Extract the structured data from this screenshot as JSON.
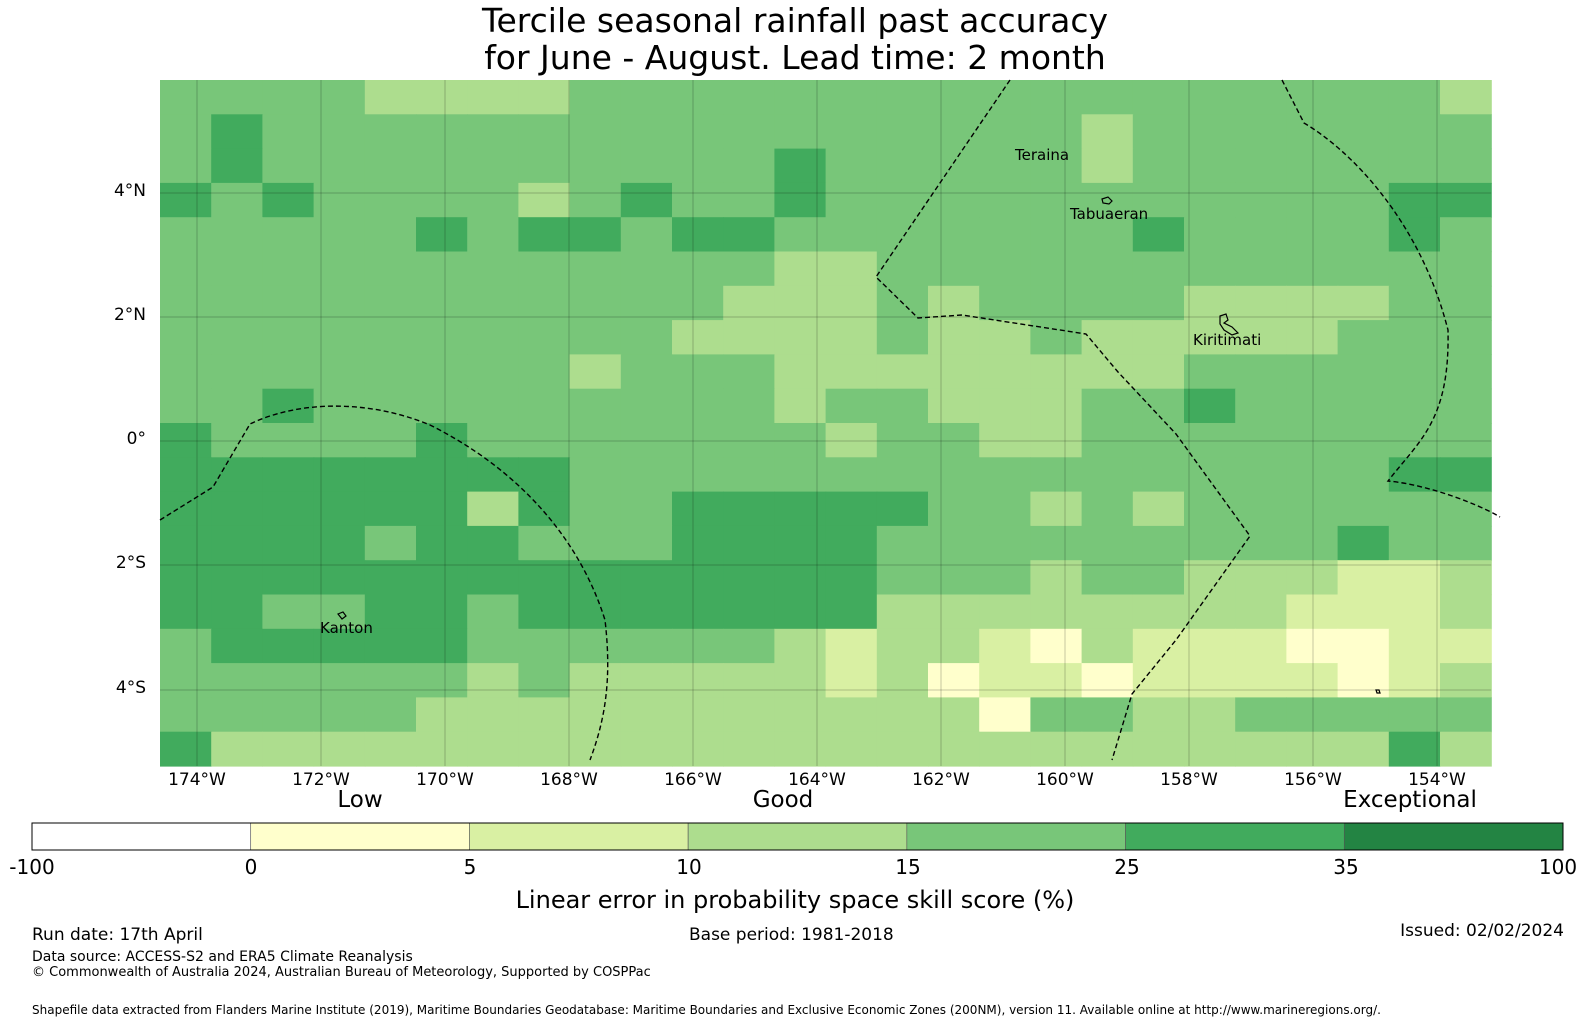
{
  "title_line1": "Tercile seasonal rainfall past accuracy",
  "title_line2": "for June - August. Lead time: 2 month",
  "lat_labels": [
    "4°N",
    "2°N",
    "0°",
    "2°S",
    "4°S"
  ],
  "lon_labels": [
    "174°W",
    "172°W",
    "170°W",
    "168°W",
    "166°W",
    "164°W",
    "162°W",
    "160°W",
    "158°W",
    "156°W",
    "154°W"
  ],
  "places": [
    "Teraina",
    "Tabuaeran",
    "Kiritimati",
    "Kanton"
  ],
  "categories": [
    "Low",
    "Good",
    "Exceptional"
  ],
  "colorbar": {
    "ticks": [
      "-100",
      "0",
      "5",
      "10",
      "15",
      "25",
      "35",
      "100"
    ],
    "colors": [
      "#ffffff",
      "#ffffcc",
      "#d9f0a3",
      "#addd8e",
      "#78c679",
      "#41ab5d",
      "#238443"
    ],
    "title": "Linear error in probability space skill score (%)"
  },
  "footer": {
    "run_date": "Run date: 17th April",
    "base_period": "Base period: 1981-2018",
    "issued": "Issued: 02/02/2024",
    "data_source": "Data source: ACCESS-S2 and ERA5 Climate Reanalysis",
    "copyright": "© Commonwealth of Australia 2024, Australian Bureau of Meteorology, Supported by COSPPac",
    "shapefile": "Shapefile data extracted from Flanders Marine Institute (2019), Maritime Boundaries Geodatabase: Maritime Boundaries and Exclusive Economic Zones (200NM), version 11. Available online at http://www.marineregions.org/."
  },
  "skill_grid": [
    "44444444444444444444444444",
    "44444444444444444444444444",
    "44444444444444444444444444",
    "44444444444444444444444444",
    "44444444444444444444444444",
    "44444444444444444444444444",
    "44444444444444444444444444",
    "44444444444444444444444444",
    "44444444444444444444444444",
    "44444444444444444444444444",
    "44444444444444444444444444",
    "44444444444444444444444444",
    "44444444444444444444444444",
    "44444444444444444444444444",
    "44444444444444444444444444",
    "44444444444444444444444444",
    "44444444444444444444444444",
    "44444444444444444444444444",
    "44444444444444444444444444",
    "44444444444444444444444444"
  ],
  "skill_cells": [
    [
      0,
      4,
      3
    ],
    [
      0,
      5,
      3
    ],
    [
      0,
      6,
      3
    ],
    [
      0,
      7,
      3
    ],
    [
      0,
      25,
      3
    ],
    [
      1,
      1,
      5
    ],
    [
      1,
      18,
      3
    ],
    [
      2,
      1,
      5
    ],
    [
      2,
      18,
      3
    ],
    [
      2,
      12,
      5
    ],
    [
      3,
      0,
      5
    ],
    [
      3,
      2,
      5
    ],
    [
      3,
      7,
      3
    ],
    [
      3,
      9,
      5
    ],
    [
      3,
      12,
      5
    ],
    [
      3,
      25,
      5
    ],
    [
      3,
      24,
      5
    ],
    [
      4,
      5,
      5
    ],
    [
      4,
      7,
      5
    ],
    [
      4,
      8,
      5
    ],
    [
      4,
      10,
      5
    ],
    [
      4,
      11,
      5
    ],
    [
      4,
      19,
      5
    ],
    [
      4,
      24,
      5
    ],
    [
      5,
      12,
      3
    ],
    [
      5,
      13,
      3
    ],
    [
      6,
      12,
      3
    ],
    [
      6,
      11,
      3
    ],
    [
      6,
      13,
      3
    ],
    [
      6,
      15,
      3
    ],
    [
      6,
      20,
      3
    ],
    [
      6,
      21,
      3
    ],
    [
      6,
      22,
      3
    ],
    [
      6,
      23,
      3
    ],
    [
      7,
      10,
      3
    ],
    [
      7,
      11,
      3
    ],
    [
      7,
      12,
      3
    ],
    [
      7,
      13,
      3
    ],
    [
      7,
      15,
      3
    ],
    [
      7,
      16,
      3
    ],
    [
      7,
      18,
      3
    ],
    [
      7,
      19,
      3
    ],
    [
      7,
      20,
      3
    ],
    [
      7,
      21,
      3
    ],
    [
      7,
      22,
      3
    ],
    [
      8,
      8,
      3
    ],
    [
      8,
      12,
      3
    ],
    [
      8,
      13,
      3
    ],
    [
      8,
      14,
      3
    ],
    [
      8,
      15,
      3
    ],
    [
      8,
      16,
      3
    ],
    [
      8,
      17,
      3
    ],
    [
      8,
      18,
      3
    ],
    [
      8,
      19,
      3
    ],
    [
      9,
      2,
      5
    ],
    [
      9,
      12,
      3
    ],
    [
      9,
      15,
      3
    ],
    [
      9,
      16,
      3
    ],
    [
      9,
      17,
      3
    ],
    [
      9,
      20,
      5
    ],
    [
      10,
      0,
      5
    ],
    [
      10,
      5,
      5
    ],
    [
      10,
      13,
      3
    ],
    [
      10,
      16,
      3
    ],
    [
      10,
      17,
      3
    ],
    [
      11,
      0,
      5
    ],
    [
      11,
      1,
      5
    ],
    [
      11,
      2,
      5
    ],
    [
      11,
      3,
      5
    ],
    [
      11,
      4,
      5
    ],
    [
      11,
      5,
      5
    ],
    [
      11,
      6,
      5
    ],
    [
      11,
      7,
      5
    ],
    [
      11,
      25,
      5
    ],
    [
      11,
      24,
      5
    ],
    [
      12,
      0,
      5
    ],
    [
      12,
      1,
      5
    ],
    [
      12,
      2,
      5
    ],
    [
      12,
      3,
      5
    ],
    [
      12,
      4,
      5
    ],
    [
      12,
      5,
      5
    ],
    [
      12,
      6,
      3
    ],
    [
      12,
      7,
      5
    ],
    [
      12,
      10,
      5
    ],
    [
      12,
      11,
      5
    ],
    [
      12,
      12,
      5
    ],
    [
      12,
      13,
      5
    ],
    [
      12,
      14,
      5
    ],
    [
      12,
      17,
      3
    ],
    [
      12,
      19,
      3
    ],
    [
      13,
      0,
      5
    ],
    [
      13,
      1,
      5
    ],
    [
      13,
      2,
      5
    ],
    [
      13,
      3,
      5
    ],
    [
      13,
      4,
      4
    ],
    [
      13,
      5,
      5
    ],
    [
      13,
      6,
      5
    ],
    [
      13,
      7,
      4
    ],
    [
      13,
      8,
      4
    ],
    [
      13,
      9,
      4
    ],
    [
      13,
      10,
      5
    ],
    [
      13,
      11,
      5
    ],
    [
      13,
      12,
      5
    ],
    [
      13,
      13,
      5
    ],
    [
      13,
      23,
      5
    ],
    [
      14,
      0,
      5
    ],
    [
      14,
      1,
      5
    ],
    [
      14,
      2,
      5
    ],
    [
      14,
      3,
      5
    ],
    [
      14,
      4,
      5
    ],
    [
      14,
      5,
      5
    ],
    [
      14,
      6,
      5
    ],
    [
      14,
      7,
      5
    ],
    [
      14,
      8,
      5
    ],
    [
      14,
      9,
      5
    ],
    [
      14,
      10,
      5
    ],
    [
      14,
      11,
      5
    ],
    [
      14,
      12,
      5
    ],
    [
      14,
      13,
      5
    ],
    [
      14,
      17,
      3
    ],
    [
      14,
      20,
      3
    ],
    [
      14,
      21,
      3
    ],
    [
      14,
      22,
      3
    ],
    [
      14,
      23,
      2
    ],
    [
      14,
      24,
      2
    ],
    [
      14,
      25,
      3
    ],
    [
      15,
      0,
      5
    ],
    [
      15,
      1,
      5
    ],
    [
      15,
      2,
      4
    ],
    [
      15,
      3,
      4
    ],
    [
      15,
      4,
      5
    ],
    [
      15,
      5,
      5
    ],
    [
      15,
      6,
      4
    ],
    [
      15,
      7,
      5
    ],
    [
      15,
      8,
      5
    ],
    [
      15,
      9,
      5
    ],
    [
      15,
      10,
      5
    ],
    [
      15,
      11,
      5
    ],
    [
      15,
      12,
      5
    ],
    [
      15,
      13,
      5
    ],
    [
      15,
      14,
      3
    ],
    [
      15,
      15,
      3
    ],
    [
      15,
      16,
      3
    ],
    [
      15,
      17,
      3
    ],
    [
      15,
      18,
      3
    ],
    [
      15,
      19,
      3
    ],
    [
      15,
      20,
      3
    ],
    [
      15,
      21,
      3
    ],
    [
      15,
      22,
      2
    ],
    [
      15,
      23,
      2
    ],
    [
      15,
      24,
      2
    ],
    [
      15,
      25,
      3
    ],
    [
      16,
      1,
      5
    ],
    [
      16,
      2,
      5
    ],
    [
      16,
      3,
      5
    ],
    [
      16,
      4,
      5
    ],
    [
      16,
      5,
      5
    ],
    [
      16,
      12,
      3
    ],
    [
      16,
      13,
      2
    ],
    [
      16,
      14,
      3
    ],
    [
      16,
      15,
      3
    ],
    [
      16,
      16,
      2
    ],
    [
      16,
      17,
      1
    ],
    [
      16,
      18,
      3
    ],
    [
      16,
      19,
      2
    ],
    [
      16,
      20,
      2
    ],
    [
      16,
      21,
      2
    ],
    [
      16,
      22,
      1
    ],
    [
      16,
      23,
      1
    ],
    [
      16,
      24,
      2
    ],
    [
      16,
      25,
      2
    ],
    [
      17,
      6,
      3
    ],
    [
      17,
      8,
      3
    ],
    [
      17,
      9,
      3
    ],
    [
      17,
      10,
      3
    ],
    [
      17,
      11,
      3
    ],
    [
      17,
      12,
      3
    ],
    [
      17,
      13,
      2
    ],
    [
      17,
      14,
      3
    ],
    [
      17,
      15,
      1
    ],
    [
      17,
      16,
      2
    ],
    [
      17,
      17,
      2
    ],
    [
      17,
      18,
      1
    ],
    [
      17,
      19,
      2
    ],
    [
      17,
      20,
      2
    ],
    [
      17,
      21,
      2
    ],
    [
      17,
      22,
      2
    ],
    [
      17,
      23,
      1
    ],
    [
      17,
      24,
      2
    ],
    [
      17,
      25,
      3
    ],
    [
      18,
      5,
      3
    ],
    [
      18,
      6,
      3
    ],
    [
      18,
      7,
      3
    ],
    [
      18,
      8,
      3
    ],
    [
      18,
      9,
      3
    ],
    [
      18,
      10,
      3
    ],
    [
      18,
      11,
      3
    ],
    [
      18,
      12,
      3
    ],
    [
      18,
      13,
      3
    ],
    [
      18,
      14,
      3
    ],
    [
      18,
      15,
      3
    ],
    [
      18,
      16,
      1
    ],
    [
      18,
      19,
      3
    ],
    [
      18,
      20,
      3
    ],
    [
      19,
      0,
      5
    ],
    [
      19,
      1,
      3
    ],
    [
      19,
      2,
      3
    ],
    [
      19,
      3,
      3
    ],
    [
      19,
      4,
      3
    ],
    [
      19,
      5,
      3
    ],
    [
      19,
      6,
      3
    ],
    [
      19,
      7,
      3
    ],
    [
      19,
      8,
      3
    ],
    [
      19,
      9,
      3
    ],
    [
      19,
      10,
      3
    ],
    [
      19,
      11,
      3
    ],
    [
      19,
      12,
      3
    ],
    [
      19,
      13,
      3
    ],
    [
      19,
      14,
      3
    ],
    [
      19,
      15,
      3
    ],
    [
      19,
      16,
      3
    ],
    [
      19,
      17,
      3
    ],
    [
      19,
      18,
      3
    ],
    [
      19,
      19,
      3
    ],
    [
      19,
      20,
      3
    ],
    [
      19,
      21,
      3
    ],
    [
      19,
      22,
      3
    ],
    [
      19,
      23,
      3
    ],
    [
      19,
      24,
      5
    ],
    [
      19,
      25,
      3
    ]
  ]
}
